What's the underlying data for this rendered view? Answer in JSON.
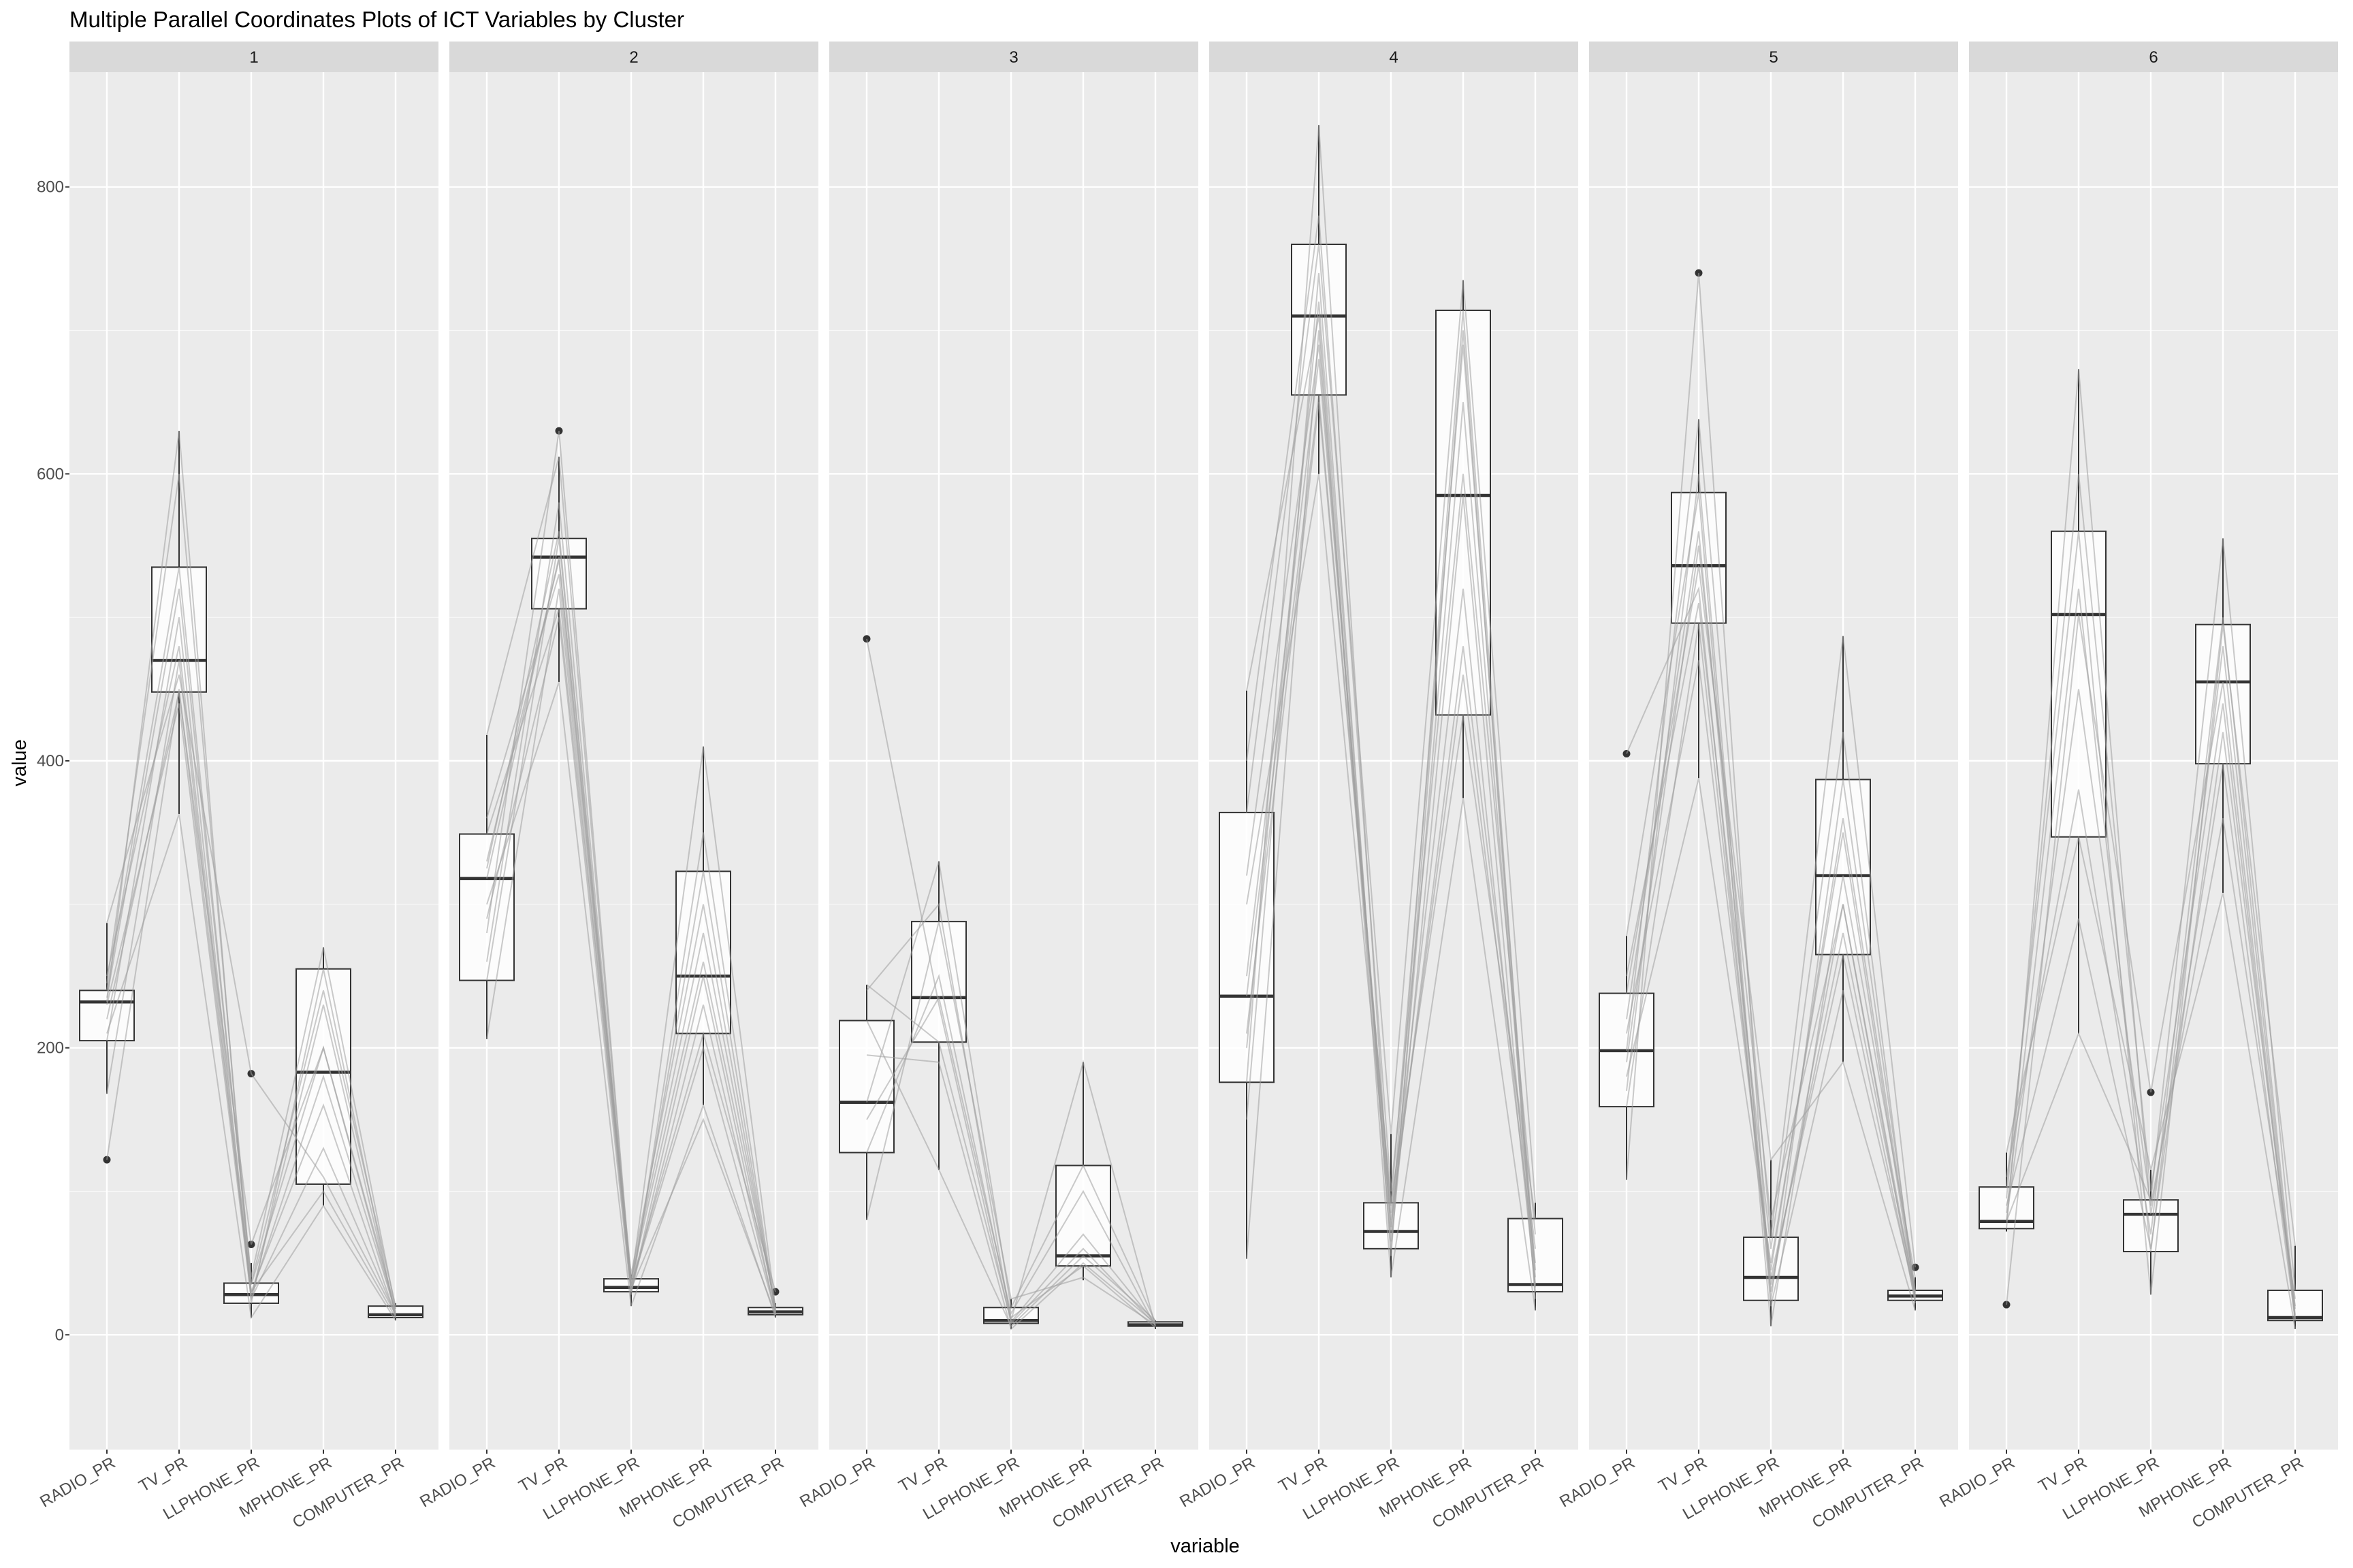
{
  "chart_data": {
    "type": "boxplot",
    "title": "Multiple Parallel Coordinates Plots of ICT Variables by Cluster",
    "xlabel": "variable",
    "ylabel": "value",
    "ylim": [
      -80,
      880
    ],
    "yticks": [
      0,
      200,
      400,
      600,
      800
    ],
    "variables": [
      "RADIO_PR",
      "TV_PR",
      "LLPHONE_PR",
      "MPHONE_PR",
      "COMPUTER_PR"
    ],
    "colors": {
      "panel_bg": "#ebebeb",
      "strip_bg": "#d9d9d9",
      "grid": "#ffffff",
      "box_fill": "#ffffff",
      "box_line": "#333333",
      "parallel_line": "#9e9e9e",
      "outlier": "#333333"
    },
    "panels": [
      {
        "label": "1",
        "boxes": [
          {
            "q1": 205,
            "median": 232,
            "q3": 240,
            "lower": 168,
            "upper": 287,
            "outliers": [
              122
            ]
          },
          {
            "q1": 448,
            "median": 470,
            "q3": 535,
            "lower": 363,
            "upper": 630,
            "outliers": []
          },
          {
            "q1": 22,
            "median": 28,
            "q3": 36,
            "lower": 12,
            "upper": 50,
            "outliers": [
              63,
              182
            ]
          },
          {
            "q1": 105,
            "median": 183,
            "q3": 255,
            "lower": 90,
            "upper": 270,
            "outliers": []
          },
          {
            "q1": 12,
            "median": 14,
            "q3": 20,
            "lower": 10,
            "upper": 22,
            "outliers": []
          }
        ],
        "lines": [
          [
            122,
            450,
            30,
            100,
            12
          ],
          [
            168,
            470,
            25,
            130,
            14
          ],
          [
            205,
            500,
            28,
            180,
            16
          ],
          [
            232,
            630,
            22,
            255,
            12
          ],
          [
            240,
            535,
            36,
            240,
            20
          ],
          [
            287,
            460,
            182,
            110,
            14
          ],
          [
            220,
            448,
            63,
            200,
            15
          ],
          [
            235,
            520,
            40,
            270,
            18
          ],
          [
            210,
            363,
            12,
            90,
            10
          ],
          [
            250,
            480,
            30,
            160,
            13
          ],
          [
            230,
            440,
            26,
            230,
            14
          ],
          [
            245,
            600,
            35,
            200,
            18
          ]
        ]
      },
      {
        "label": "2",
        "boxes": [
          {
            "q1": 247,
            "median": 318,
            "q3": 349,
            "lower": 206,
            "upper": 418,
            "outliers": []
          },
          {
            "q1": 506,
            "median": 542,
            "q3": 555,
            "lower": 455,
            "upper": 612,
            "outliers": [
              630
            ]
          },
          {
            "q1": 30,
            "median": 33,
            "q3": 39,
            "lower": 20,
            "upper": 42,
            "outliers": []
          },
          {
            "q1": 210,
            "median": 250,
            "q3": 323,
            "lower": 160,
            "upper": 410,
            "outliers": []
          },
          {
            "q1": 14,
            "median": 16,
            "q3": 19,
            "lower": 12,
            "upper": 22,
            "outliers": [
              30
            ]
          }
        ],
        "lines": [
          [
            206,
            520,
            30,
            250,
            14
          ],
          [
            247,
            555,
            33,
            323,
            16
          ],
          [
            280,
            630,
            36,
            410,
            19
          ],
          [
            318,
            542,
            30,
            230,
            15
          ],
          [
            349,
            506,
            39,
            280,
            18
          ],
          [
            418,
            612,
            35,
            210,
            30
          ],
          [
            300,
            455,
            20,
            160,
            12
          ],
          [
            330,
            540,
            42,
            300,
            17
          ],
          [
            260,
            580,
            32,
            150,
            14
          ],
          [
            360,
            530,
            38,
            260,
            20
          ],
          [
            290,
            500,
            28,
            350,
            16
          ],
          [
            325,
            560,
            34,
            200,
            15
          ]
        ]
      },
      {
        "label": "3",
        "boxes": [
          {
            "q1": 127,
            "median": 162,
            "q3": 219,
            "lower": 80,
            "upper": 244,
            "outliers": [
              485
            ]
          },
          {
            "q1": 204,
            "median": 235,
            "q3": 288,
            "lower": 115,
            "upper": 330,
            "outliers": []
          },
          {
            "q1": 8,
            "median": 10,
            "q3": 19,
            "lower": 4,
            "upper": 25,
            "outliers": []
          },
          {
            "q1": 48,
            "median": 55,
            "q3": 118,
            "lower": 38,
            "upper": 190,
            "outliers": []
          },
          {
            "q1": 6,
            "median": 7,
            "q3": 9,
            "lower": 4,
            "upper": 10,
            "outliers": []
          }
        ],
        "lines": [
          [
            485,
            230,
            8,
            60,
            7
          ],
          [
            244,
            204,
            10,
            190,
            6
          ],
          [
            195,
            190,
            4,
            50,
            8
          ],
          [
            162,
            330,
            19,
            118,
            9
          ],
          [
            127,
            250,
            12,
            48,
            5
          ],
          [
            80,
            288,
            25,
            40,
            7
          ],
          [
            219,
            115,
            6,
            55,
            10
          ],
          [
            150,
            235,
            15,
            100,
            6
          ],
          [
            240,
            300,
            9,
            70,
            8
          ]
        ]
      },
      {
        "label": "4",
        "boxes": [
          {
            "q1": 176,
            "median": 236,
            "q3": 364,
            "lower": 53,
            "upper": 449,
            "outliers": []
          },
          {
            "q1": 655,
            "median": 710,
            "q3": 760,
            "lower": 600,
            "upper": 843,
            "outliers": []
          },
          {
            "q1": 60,
            "median": 72,
            "q3": 92,
            "lower": 40,
            "upper": 140,
            "outliers": []
          },
          {
            "q1": 432,
            "median": 585,
            "q3": 714,
            "lower": 374,
            "upper": 735,
            "outliers": []
          },
          {
            "q1": 30,
            "median": 35,
            "q3": 81,
            "lower": 17,
            "upper": 92,
            "outliers": []
          }
        ],
        "lines": [
          [
            53,
            700,
            60,
            585,
            30
          ],
          [
            176,
            843,
            72,
            714,
            35
          ],
          [
            236,
            655,
            92,
            432,
            81
          ],
          [
            364,
            760,
            140,
            735,
            92
          ],
          [
            449,
            710,
            40,
            374,
            17
          ],
          [
            300,
            600,
            80,
            460,
            50
          ],
          [
            200,
            720,
            65,
            650,
            40
          ],
          [
            250,
            680,
            85,
            520,
            33
          ],
          [
            400,
            780,
            100,
            600,
            70
          ],
          [
            150,
            740,
            55,
            700,
            25
          ],
          [
            320,
            690,
            75,
            480,
            60
          ],
          [
            210,
            650,
            90,
            690,
            45
          ]
        ]
      },
      {
        "label": "5",
        "boxes": [
          {
            "q1": 159,
            "median": 198,
            "q3": 238,
            "lower": 108,
            "upper": 278,
            "outliers": [
              405
            ]
          },
          {
            "q1": 496,
            "median": 536,
            "q3": 587,
            "lower": 388,
            "upper": 638,
            "outliers": [
              740
            ]
          },
          {
            "q1": 24,
            "median": 40,
            "q3": 68,
            "lower": 6,
            "upper": 122,
            "outliers": []
          },
          {
            "q1": 265,
            "median": 320,
            "q3": 387,
            "lower": 190,
            "upper": 487,
            "outliers": []
          },
          {
            "q1": 24,
            "median": 27,
            "q3": 31,
            "lower": 17,
            "upper": 40,
            "outliers": [
              47
            ]
          }
        ],
        "lines": [
          [
            405,
            520,
            30,
            300,
            27
          ],
          [
            108,
            740,
            24,
            387,
            31
          ],
          [
            159,
            496,
            40,
            265,
            24
          ],
          [
            198,
            638,
            68,
            487,
            47
          ],
          [
            238,
            536,
            122,
            190,
            17
          ],
          [
            278,
            587,
            6,
            320,
            40
          ],
          [
            180,
            388,
            50,
            350,
            26
          ],
          [
            220,
            560,
            35,
            280,
            29
          ],
          [
            250,
            510,
            60,
            420,
            25
          ],
          [
            170,
            600,
            20,
            240,
            28
          ],
          [
            210,
            470,
            45,
            360,
            30
          ],
          [
            190,
            550,
            80,
            300,
            22
          ]
        ]
      },
      {
        "label": "6",
        "boxes": [
          {
            "q1": 74,
            "median": 79,
            "q3": 103,
            "lower": 72,
            "upper": 127,
            "outliers": [
              21
            ]
          },
          {
            "q1": 347,
            "median": 502,
            "q3": 560,
            "lower": 210,
            "upper": 673,
            "outliers": []
          },
          {
            "q1": 58,
            "median": 84,
            "q3": 94,
            "lower": 28,
            "upper": 115,
            "outliers": [
              169
            ]
          },
          {
            "q1": 398,
            "median": 455,
            "q3": 495,
            "lower": 308,
            "upper": 555,
            "outliers": []
          },
          {
            "q1": 10,
            "median": 12,
            "q3": 31,
            "lower": 4,
            "upper": 62,
            "outliers": []
          }
        ],
        "lines": [
          [
            21,
            502,
            169,
            455,
            12
          ],
          [
            74,
            673,
            84,
            398,
            10
          ],
          [
            79,
            210,
            94,
            555,
            31
          ],
          [
            103,
            560,
            28,
            495,
            62
          ],
          [
            127,
            347,
            115,
            308,
            4
          ],
          [
            90,
            290,
            60,
            420,
            20
          ],
          [
            85,
            520,
            58,
            480,
            14
          ],
          [
            95,
            600,
            100,
            440,
            11
          ],
          [
            80,
            450,
            90,
            360,
            25
          ],
          [
            110,
            380,
            70,
            500,
            18
          ]
        ]
      }
    ]
  }
}
